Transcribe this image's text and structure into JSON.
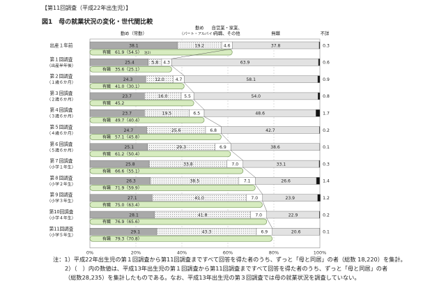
{
  "page": {
    "header": "【第11回調査（平成22年出生児）】",
    "title": "図1　母の就業状況の変化・世代間比較",
    "notes": [
      "注：1）平成22年出生児の第１回調査から第11回調査まですべて回答を得た者のうち、ずっと「母と同居」の者（総数 18,220）を集計。",
      "2）（　）内の数値は、平成13年出生児の第１回調査から第11回調査まですべて回答を得た者のうち、ずっと「母と同居」の者",
      "（総数28,235）を集計したものである。なお、平成13年出生児の第３回調査では母の就業状況を調査していない。"
    ]
  },
  "chart_data": {
    "type": "bar",
    "orientation": "horizontal",
    "stacked": true,
    "percent": true,
    "xlim": [
      0,
      100
    ],
    "xticks": [
      "0%",
      "20%",
      "40%",
      "60%",
      "80%",
      "100%"
    ],
    "grid": true,
    "categories": [
      [
        "出産１年前"
      ],
      [
        "第１回調査",
        "（出産半年後）"
      ],
      [
        "第２回調査",
        "（１歳６か月）"
      ],
      [
        "第３回調査",
        "（２歳６か月）"
      ],
      [
        "第４回調査",
        "（３歳６か月）"
      ],
      [
        "第５回調査",
        "（４歳６か月）"
      ],
      [
        "第６回調査",
        "（５歳６か月）"
      ],
      [
        "第７回調査",
        "（小学１年生）"
      ],
      [
        "第８回調査",
        "（小学２年生）"
      ],
      [
        "第９回調査",
        "（小学３年生）"
      ],
      [
        "第10回調査",
        "（小学４年生）"
      ],
      [
        "第11回調査",
        "（小学５年生）"
      ]
    ],
    "series": [
      {
        "name": "勤め（常勤）",
        "color": "#a9a9a9",
        "values": [
          38.1,
          25.4,
          24.3,
          23.7,
          23.7,
          24.7,
          25.1,
          25.8,
          26.3,
          27.1,
          28.1,
          29.1
        ]
      },
      {
        "name": "勤め（パート・アルバイト）",
        "color": "#f3f3f3",
        "pattern": "dots",
        "values": [
          19.2,
          5.8,
          12.0,
          16.0,
          19.5,
          25.6,
          29.3,
          33.8,
          38.5,
          41.0,
          41.8,
          43.3
        ]
      },
      {
        "name": "自営業・家業、内職、その他",
        "color": "#ffffff",
        "values": [
          4.6,
          4.3,
          4.7,
          5.5,
          6.5,
          6.8,
          6.9,
          7.0,
          7.1,
          7.0,
          7.0,
          6.9
        ]
      },
      {
        "name": "無職",
        "color": "#e2e2e2",
        "values": [
          37.8,
          63.9,
          58.1,
          54.0,
          48.6,
          42.7,
          38.6,
          33.1,
          26.6,
          23.9,
          22.9,
          20.6
        ]
      },
      {
        "name": "不詳",
        "color": "#111111",
        "values": [
          0.3,
          0.6,
          0.9,
          0.8,
          1.7,
          0.2,
          0.1,
          0.3,
          1.4,
          1.2,
          0.2,
          0.1
        ]
      }
    ],
    "employed": [
      "有職　61.9（54.5）",
      "有職　35.6（25.1）",
      "有職　41.0（30.1）",
      "有職　45.2",
      "有職　49.7（40.4）",
      "有職　57.1（45.8）",
      "有職　61.2（50.4）",
      "有職　66.6（55.1）",
      "有職　71.9（59.9）",
      "有職　75.0（63.4）",
      "有職　76.9（65.6）",
      "有職　79.3（70.8）"
    ],
    "employed_values": [
      61.9,
      35.6,
      41.0,
      45.2,
      49.7,
      57.1,
      61.2,
      66.6,
      71.9,
      75.0,
      76.9,
      79.3
    ],
    "first_row_note": "注2)",
    "employed_color": "#d7ecc0"
  }
}
